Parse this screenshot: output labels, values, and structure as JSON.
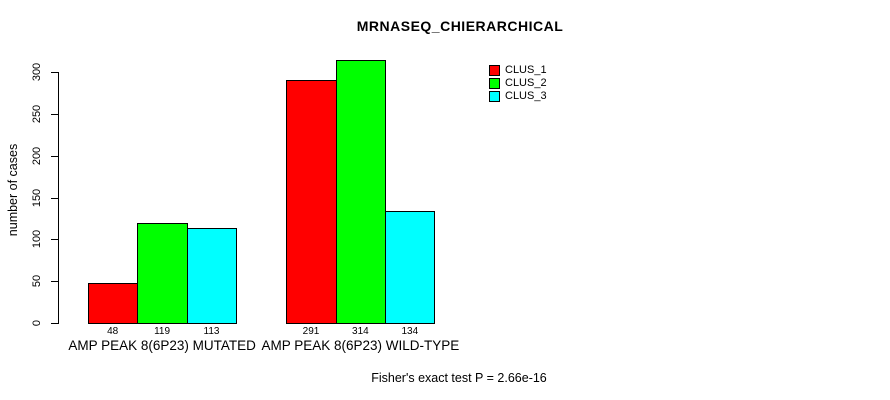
{
  "chart_data": {
    "type": "bar",
    "title": "MRNASEQ_CHIERARCHICAL",
    "xlabel": "",
    "ylabel": "number of cases",
    "ylim": [
      0,
      300
    ],
    "yticks": [
      0,
      50,
      100,
      150,
      200,
      250,
      300
    ],
    "categories": [
      "AMP PEAK  8(6P23) MUTATED",
      "AMP PEAK  8(6P23) WILD-TYPE"
    ],
    "series": [
      {
        "name": "CLUS_1",
        "color": "#ff0000",
        "values": [
          48,
          291
        ]
      },
      {
        "name": "CLUS_2",
        "color": "#00ff00",
        "values": [
          119,
          314
        ]
      },
      {
        "name": "CLUS_3",
        "color": "#00ffff",
        "values": [
          113,
          134
        ]
      }
    ],
    "values_shown_below_bars": true,
    "grid": false,
    "legend_position": "top-right",
    "background": "#ffffff",
    "annotation": "Fisher's exact test P = 2.66e-16"
  }
}
